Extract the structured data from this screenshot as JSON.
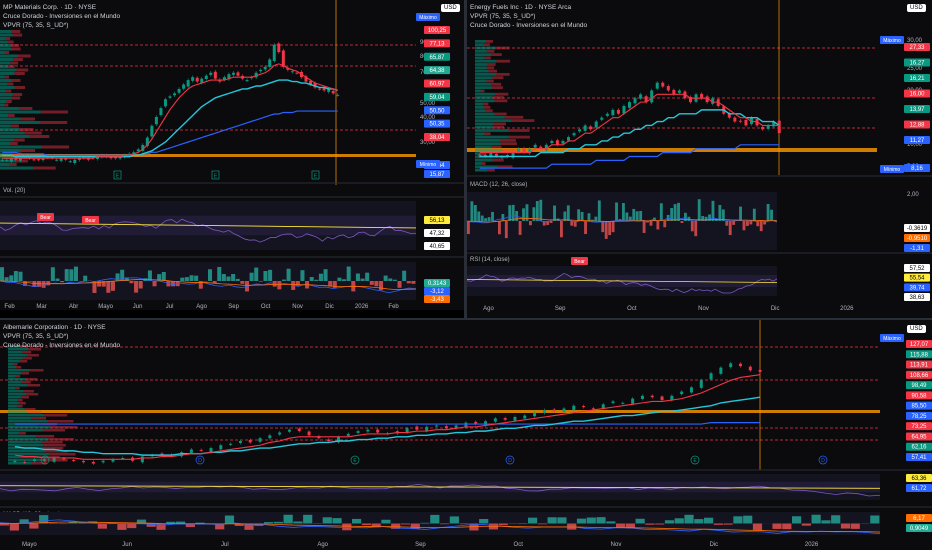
{
  "chart_data": [
    {
      "type": "candlestick",
      "title": "MP Materials Corp. · 1D · NYSE",
      "indicators": [
        "VPVR (75, 35, S_UD*)",
        "Cruce Dorado - Inversiones en el Mundo"
      ],
      "currency": "USD",
      "x_ticks": [
        "Feb",
        "Mar",
        "Abr",
        "Mayo",
        "Jun",
        "Jul",
        "Ago",
        "Sep",
        "Oct",
        "Nov",
        "Dic",
        "2026",
        "Feb"
      ],
      "y_ticks": [
        "90,00",
        "80,00",
        "70,00",
        "50,00",
        "40,00",
        "30,00",
        "20,00"
      ],
      "ylim": [
        10,
        105
      ],
      "max_label": "Máximo",
      "min_label": "Mínimo",
      "price_tags": [
        {
          "value": "100,25",
          "color": "#f23645"
        },
        {
          "value": "77,13",
          "color": "#f23645"
        },
        {
          "value": "65,87",
          "color": "#089981"
        },
        {
          "value": "64,38",
          "color": "#22ab94"
        },
        {
          "value": "60,97",
          "color": "#f23645"
        },
        {
          "value": "59,04",
          "color": "#089981"
        },
        {
          "value": "50,50",
          "color": "#2962ff"
        },
        {
          "value": "50,35",
          "color": "#2962ff"
        },
        {
          "value": "38,04",
          "color": "#f23645"
        },
        {
          "value": "18,64",
          "color": "#2962ff"
        },
        {
          "value": "15,87",
          "color": "#2962ff"
        }
      ],
      "close_series": [
        17,
        17,
        18,
        17,
        18,
        19,
        18,
        17,
        17,
        18,
        19,
        18,
        17,
        18,
        17,
        16,
        17,
        18,
        18,
        17,
        18,
        19,
        20,
        19,
        18,
        18,
        19,
        20,
        21,
        22,
        24,
        27,
        32,
        40,
        46,
        52,
        58,
        60,
        62,
        65,
        68,
        71,
        73,
        70,
        72,
        74,
        76,
        72,
        70,
        73,
        75,
        76,
        74,
        72,
        71,
        73,
        76,
        78,
        80,
        85,
        95,
        90,
        80,
        78,
        77,
        76,
        73,
        70,
        68,
        66,
        65,
        64,
        65,
        62,
        61
      ],
      "ma_fast": [
        18,
        18,
        18,
        18,
        18,
        18,
        18,
        18,
        18,
        18,
        18,
        18,
        18,
        18,
        18,
        18,
        18,
        18,
        18,
        18,
        18,
        19,
        19,
        19,
        19,
        19,
        19,
        20,
        20,
        21,
        22,
        24,
        27,
        31,
        36,
        41,
        46,
        51,
        55,
        59,
        62,
        65,
        67,
        68,
        69,
        70,
        71,
        71,
        71,
        71,
        72,
        73,
        73,
        73,
        73,
        73,
        74,
        75,
        76,
        78,
        81,
        82,
        81,
        79,
        78,
        77,
        75,
        73,
        71,
        69,
        68,
        67,
        66,
        65,
        64
      ],
      "ma_slow": [
        20,
        20,
        20,
        19,
        19,
        19,
        19,
        19,
        19,
        19,
        19,
        19,
        19,
        19,
        19,
        19,
        19,
        19,
        19,
        19,
        19,
        19,
        19,
        19,
        19,
        19,
        19,
        19,
        19,
        20,
        20,
        21,
        22,
        23,
        25,
        27,
        29,
        32,
        35,
        38,
        41,
        44,
        47,
        50,
        53,
        55,
        57,
        59,
        60,
        61,
        62,
        63,
        64,
        65,
        65,
        66,
        67,
        67,
        68,
        69,
        70,
        71,
        71,
        71,
        70,
        70,
        69,
        69,
        68,
        67,
        66,
        66,
        65,
        65,
        64
      ],
      "ma_long": [
        22,
        22,
        22,
        22,
        21,
        21,
        21,
        21,
        21,
        21,
        20,
        20,
        20,
        20,
        20,
        20,
        20,
        20,
        20,
        20,
        20,
        20,
        20,
        20,
        20,
        20,
        20,
        20,
        20,
        20,
        20,
        21,
        21,
        22,
        22,
        23,
        24,
        25,
        26,
        27,
        28,
        29,
        30,
        31,
        32,
        33,
        34,
        35,
        36,
        37,
        38,
        39,
        40,
        41,
        42,
        43,
        44,
        45,
        46,
        47,
        48,
        48,
        49,
        49,
        49,
        50,
        50,
        50,
        50,
        50,
        50,
        50,
        50,
        50,
        50
      ]
    },
    {
      "type": "line",
      "title": "Vol. (20)"
    },
    {
      "type": "line",
      "title": "RSI (14, close)",
      "price_tags": [
        {
          "value": "56,13",
          "color": "#ffeb3b"
        },
        {
          "value": "47,32",
          "color": "#ffffff"
        },
        {
          "value": "40,65",
          "color": "#ffffff"
        }
      ],
      "annotations": [
        "Bear",
        "Bear"
      ]
    },
    {
      "type": "bar",
      "title": "MACD (12, 26, close)",
      "price_tags": [
        {
          "value": "0,3143",
          "color": "#22ab94"
        },
        {
          "value": "-3,12",
          "color": "#2962ff"
        },
        {
          "value": "-3,43",
          "color": "#ff6d00"
        }
      ]
    },
    {
      "type": "candlestick",
      "title": "Energy Fuels Inc · 1D · NYSE Arca",
      "indicators": [
        "VPVR (75, 35, S_UD*)",
        "Cruce Dorado - Inversiones en el Mundo"
      ],
      "currency": "USD",
      "x_ticks": [
        "Ago",
        "Sep",
        "Oct",
        "Nov",
        "Dic",
        "2026"
      ],
      "y_ticks": [
        "36,00",
        "30,00",
        "25,00",
        "20,00",
        "15,00",
        "10,00",
        "5,00"
      ],
      "ylim": [
        4,
        38
      ],
      "max_label": "Máximo",
      "min_label": "Mínimo",
      "price_tags": [
        {
          "value": "27,33",
          "color": "#f23645"
        },
        {
          "value": "16,27",
          "color": "#089981"
        },
        {
          "value": "16,21",
          "color": "#089981"
        },
        {
          "value": "16,00",
          "color": "#f23645"
        },
        {
          "value": "13,97",
          "color": "#089981"
        },
        {
          "value": "12,88",
          "color": "#f23645"
        },
        {
          "value": "11,27",
          "color": "#2962ff"
        },
        {
          "value": "8,16",
          "color": "#2962ff"
        }
      ],
      "close_series": [
        8,
        8,
        9,
        8,
        8,
        8,
        9,
        10,
        9,
        10,
        11,
        10,
        11,
        12,
        11,
        12,
        13,
        14,
        15,
        16,
        15,
        17,
        18,
        19,
        20,
        19,
        21,
        22,
        23,
        24,
        22,
        25,
        27,
        26,
        25,
        24,
        25,
        23,
        22,
        24,
        23,
        22,
        23,
        21,
        19,
        18,
        17,
        17,
        16,
        18,
        16,
        15,
        16,
        17,
        14
      ],
      "ma_fast": [
        9,
        9,
        9,
        9,
        9,
        9,
        9,
        9,
        9,
        9,
        10,
        10,
        10,
        11,
        11,
        11,
        12,
        12,
        13,
        14,
        14,
        15,
        16,
        17,
        18,
        18,
        19,
        20,
        21,
        22,
        22,
        23,
        24,
        24,
        24,
        24,
        24,
        24,
        23,
        23,
        23,
        23,
        22,
        22,
        21,
        20,
        19,
        18,
        18,
        17,
        17,
        16,
        16,
        16,
        16
      ],
      "ma_slow": [
        8,
        8,
        8,
        8,
        8,
        8,
        8,
        8,
        8,
        8,
        8,
        9,
        9,
        9,
        9,
        9,
        10,
        10,
        10,
        11,
        11,
        11,
        12,
        12,
        13,
        13,
        14,
        14,
        15,
        15,
        16,
        16,
        17,
        17,
        18,
        18,
        19,
        19,
        19,
        19,
        20,
        20,
        20,
        20,
        20,
        19,
        19,
        19,
        18,
        18,
        18,
        17,
        17,
        17,
        16
      ],
      "ma_long": [
        5,
        5,
        5,
        5,
        5,
        5,
        5,
        5,
        5,
        5,
        5,
        5,
        5,
        6,
        6,
        6,
        6,
        6,
        6,
        6,
        6,
        7,
        7,
        7,
        7,
        7,
        7,
        8,
        8,
        8,
        8,
        8,
        8,
        9,
        9,
        9,
        9,
        9,
        9,
        10,
        10,
        10,
        10,
        10,
        10,
        10,
        10,
        11,
        11,
        11,
        11,
        11,
        11,
        11,
        11
      ]
    },
    {
      "type": "bar",
      "title": "MACD (12, 26, close)",
      "price_tags": [
        {
          "value": "-0,3619",
          "color": "#ffffff"
        },
        {
          "value": "-0,9510",
          "color": "#ff6d00"
        },
        {
          "value": "-1,31",
          "color": "#2962ff"
        }
      ],
      "y_ticks": [
        "2,00",
        "0,0000"
      ]
    },
    {
      "type": "line",
      "title": "RSI (14, close)",
      "price_tags": [
        {
          "value": "57,52",
          "color": "#ffffff"
        },
        {
          "value": "55,54",
          "color": "#ffeb3b"
        },
        {
          "value": "39,74",
          "color": "#2962ff"
        },
        {
          "value": "38,63",
          "color": "#ffffff"
        }
      ],
      "annotations": [
        "Bear"
      ]
    },
    {
      "type": "candlestick",
      "title": "Albemarle Corporation · 1D · NYSE",
      "indicators": [
        "VPVR (75, 35, S_UD*)",
        "Cruce Dorado - Inversiones en el Mundo"
      ],
      "currency": "USD",
      "x_ticks": [
        "Mayo",
        "Jun",
        "Jul",
        "Ago",
        "Sep",
        "Oct",
        "Nov",
        "Dic",
        "2026"
      ],
      "y_ticks": [
        "130,00"
      ],
      "ylim": [
        55,
        140
      ],
      "max_label": "Máximo",
      "price_tags": [
        {
          "value": "127,07",
          "color": "#f23645"
        },
        {
          "value": "115,88",
          "color": "#089981"
        },
        {
          "value": "113,91",
          "color": "#f23645"
        },
        {
          "value": "108,66",
          "color": "#f23645"
        },
        {
          "value": "98,49",
          "color": "#089981"
        },
        {
          "value": "90,58",
          "color": "#f23645"
        },
        {
          "value": "85,50",
          "color": "#2962ff"
        },
        {
          "value": "78,25",
          "color": "#2962ff"
        },
        {
          "value": "73,25",
          "color": "#f23645"
        },
        {
          "value": "64,95",
          "color": "#f23645"
        },
        {
          "value": "62,16",
          "color": "#089981"
        },
        {
          "value": "57,41",
          "color": "#2962ff"
        }
      ],
      "close_series": [
        58,
        57,
        59,
        58,
        60,
        59,
        58,
        57,
        56,
        58,
        59,
        60,
        58,
        61,
        62,
        63,
        62,
        64,
        66,
        65,
        67,
        69,
        70,
        72,
        71,
        74,
        76,
        78,
        80,
        79,
        76,
        74,
        72,
        75,
        77,
        79,
        80,
        78,
        77,
        79,
        81,
        80,
        82,
        83,
        81,
        83,
        85,
        84,
        86,
        88,
        87,
        89,
        90,
        92,
        94,
        93,
        95,
        97,
        96,
        95,
        98,
        100,
        99,
        102,
        104,
        103,
        101,
        104,
        107,
        110,
        115,
        120,
        124,
        127,
        125,
        122,
        121
      ],
      "ma_fast": [
        62,
        61,
        61,
        60,
        60,
        60,
        60,
        59,
        59,
        59,
        59,
        59,
        59,
        60,
        60,
        61,
        61,
        62,
        63,
        63,
        64,
        65,
        66,
        67,
        68,
        69,
        71,
        72,
        74,
        75,
        75,
        75,
        75,
        75,
        75,
        76,
        77,
        77,
        77,
        78,
        78,
        79,
        79,
        80,
        80,
        81,
        82,
        82,
        83,
        84,
        85,
        86,
        87,
        88,
        89,
        90,
        91,
        92,
        93,
        94,
        95,
        96,
        97,
        98,
        99,
        100,
        100,
        101,
        102,
        104,
        106,
        109,
        112,
        115,
        117,
        118,
        119
      ],
      "ma_slow": [
        68,
        67,
        67,
        66,
        66,
        65,
        65,
        64,
        64,
        63,
        63,
        63,
        63,
        62,
        62,
        62,
        62,
        63,
        63,
        63,
        64,
        64,
        65,
        65,
        66,
        67,
        67,
        68,
        69,
        70,
        70,
        71,
        71,
        72,
        72,
        73,
        73,
        74,
        74,
        75,
        75,
        76,
        76,
        77,
        77,
        78,
        78,
        79,
        79,
        80,
        81,
        81,
        82,
        83,
        83,
        84,
        85,
        86,
        86,
        87,
        88,
        89,
        90,
        90,
        91,
        92,
        93,
        93,
        94,
        95,
        96,
        97,
        99,
        100,
        101,
        102,
        103
      ],
      "ma_long": [
        84,
        84,
        84,
        84,
        84,
        84,
        84,
        84,
        84,
        84,
        84,
        84,
        84,
        84,
        84,
        84,
        84,
        84,
        84,
        84,
        84,
        84,
        84,
        84,
        84,
        84,
        84,
        84,
        84,
        84,
        84,
        84,
        84,
        84,
        84,
        84,
        84,
        84,
        84,
        84,
        84,
        84,
        84,
        84,
        84,
        84,
        84,
        84,
        84,
        84,
        84,
        84,
        84,
        84,
        84,
        84,
        84,
        84,
        84,
        84,
        84,
        84,
        84,
        84,
        84,
        84,
        84,
        84,
        84,
        84,
        84,
        85,
        85,
        85,
        85,
        85,
        85
      ]
    },
    {
      "type": "line",
      "title": "RSI (14, close)",
      "price_tags": [
        {
          "value": "63,36",
          "color": "#ffeb3b"
        },
        {
          "value": "61,72",
          "color": "#2962ff"
        }
      ]
    },
    {
      "type": "bar",
      "title": "MACD (12, 26, close)",
      "price_tags": [
        {
          "value": "6,17",
          "color": "#ff6d00"
        },
        {
          "value": "0,9049",
          "color": "#22ab94"
        }
      ]
    }
  ]
}
